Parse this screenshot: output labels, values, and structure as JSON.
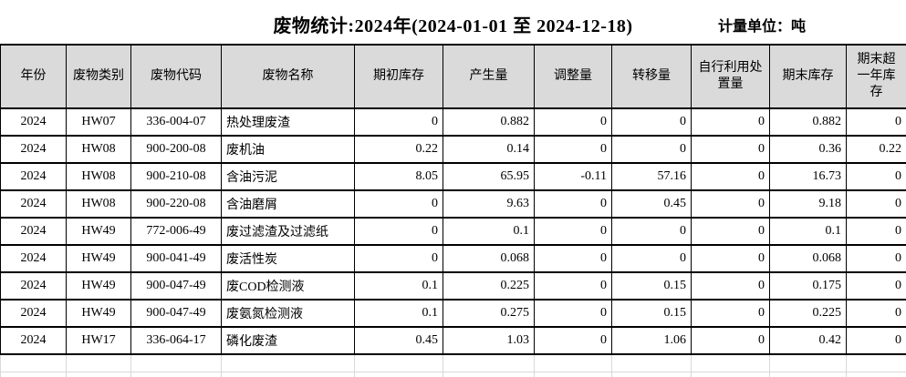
{
  "title": "废物统计:2024年(2024-01-01 至 2024-12-18)",
  "unit_label": "计量单位：吨",
  "colors": {
    "background": "#ffffff",
    "text": "#000000",
    "border": "#000000",
    "header_bg": "#dadada",
    "faint_grid": "#d9d9d9"
  },
  "table": {
    "columns": [
      "年份",
      "废物类别",
      "废物代码",
      "废物名称",
      "期初库存",
      "产生量",
      "调整量",
      "转移量",
      "自行利用处置量",
      "期末库存",
      "期末超一年库存"
    ],
    "rows": [
      [
        "2024",
        "HW07",
        "336-004-07",
        "热处理废渣",
        "0",
        "0.882",
        "0",
        "0",
        "0",
        "0.882",
        "0"
      ],
      [
        "2024",
        "HW08",
        "900-200-08",
        "废机油",
        "0.22",
        "0.14",
        "0",
        "0",
        "0",
        "0.36",
        "0.22"
      ],
      [
        "2024",
        "HW08",
        "900-210-08",
        "含油污泥",
        "8.05",
        "65.95",
        "-0.11",
        "57.16",
        "0",
        "16.73",
        "0"
      ],
      [
        "2024",
        "HW08",
        "900-220-08",
        "含油磨屑",
        "0",
        "9.63",
        "0",
        "0.45",
        "0",
        "9.18",
        "0"
      ],
      [
        "2024",
        "HW49",
        "772-006-49",
        "废过滤渣及过滤纸",
        "0",
        "0.1",
        "0",
        "0",
        "0",
        "0.1",
        "0"
      ],
      [
        "2024",
        "HW49",
        "900-041-49",
        "废活性炭",
        "0",
        "0.068",
        "0",
        "0",
        "0",
        "0.068",
        "0"
      ],
      [
        "2024",
        "HW49",
        "900-047-49",
        "废COD检测液",
        "0.1",
        "0.225",
        "0",
        "0.15",
        "0",
        "0.175",
        "0"
      ],
      [
        "2024",
        "HW49",
        "900-047-49",
        "废氨氮检测液",
        "0.1",
        "0.275",
        "0",
        "0.15",
        "0",
        "0.225",
        "0"
      ],
      [
        "2024",
        "HW17",
        "336-064-17",
        "磷化废渣",
        "0.45",
        "1.03",
        "0",
        "1.06",
        "0",
        "0.42",
        "0"
      ]
    ]
  }
}
